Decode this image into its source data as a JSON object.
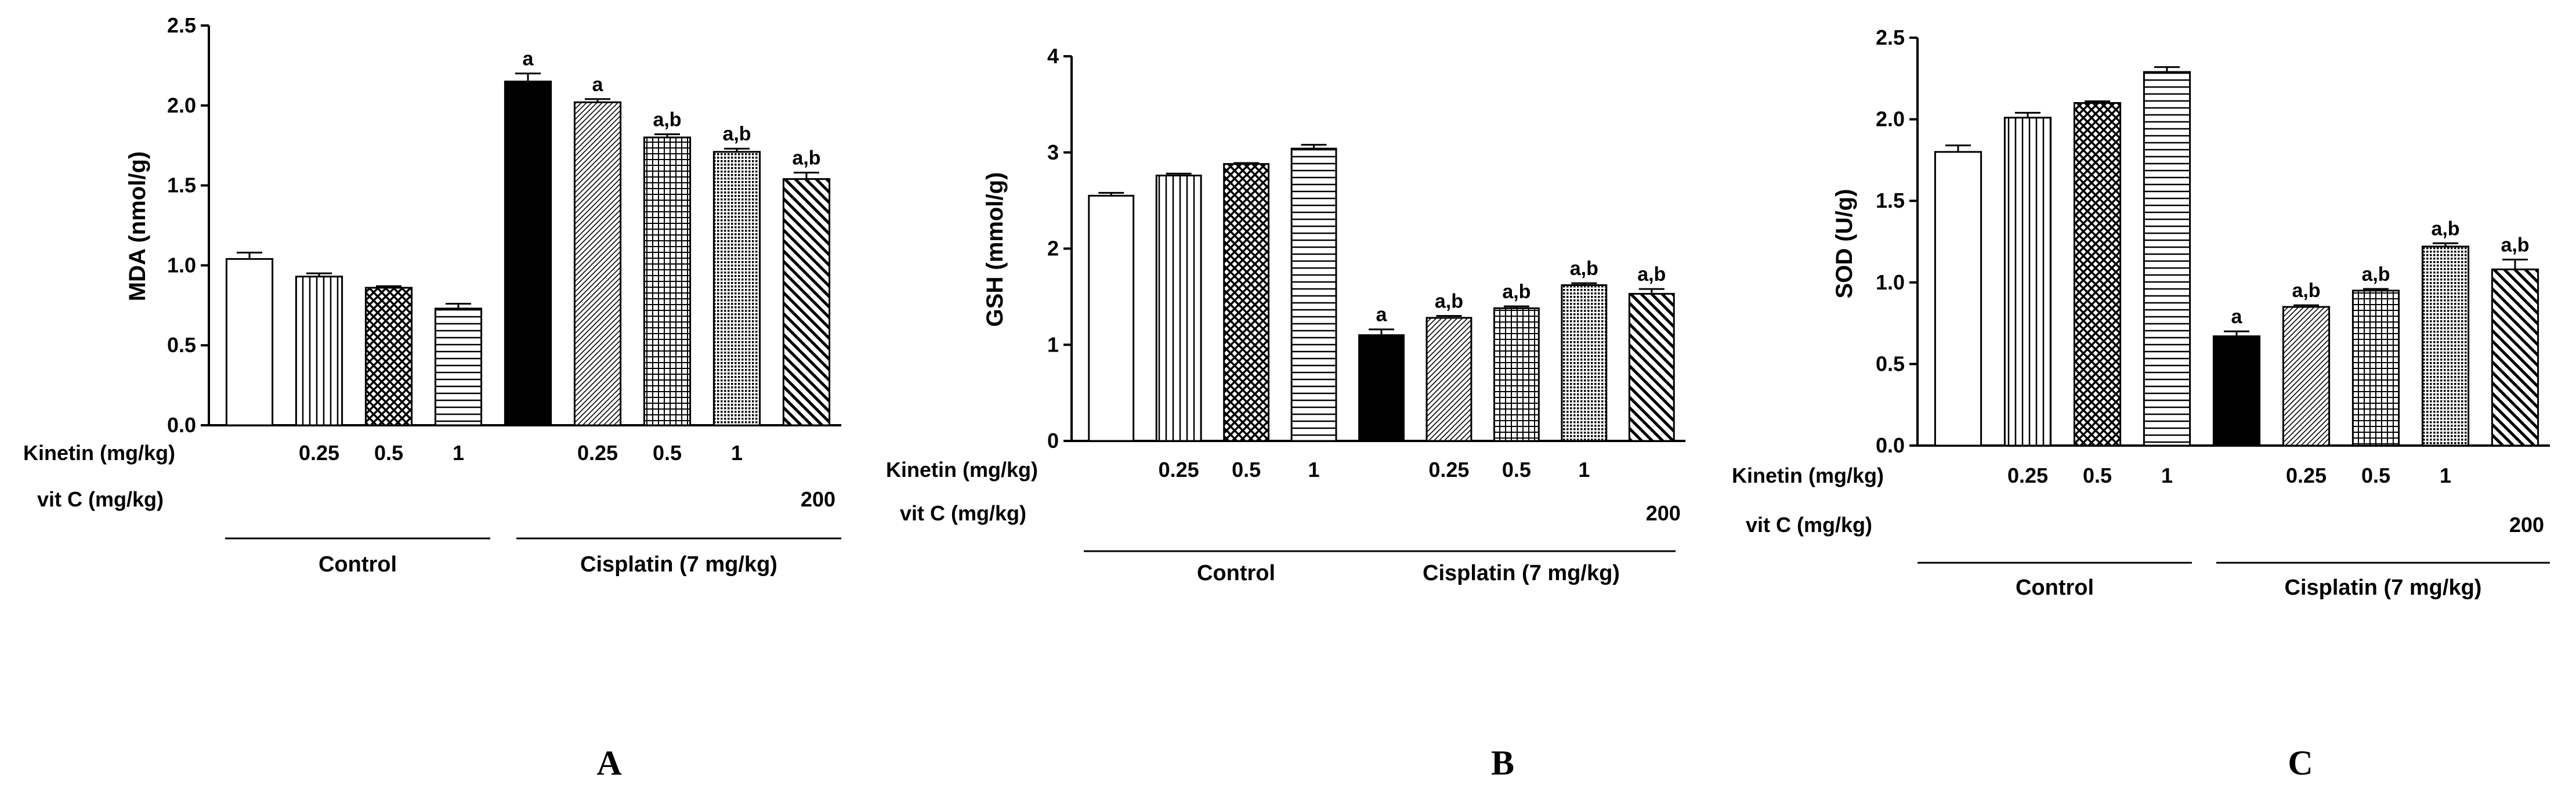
{
  "chart_data": [
    {
      "type": "bar",
      "panel": "A",
      "ylabel": "MDA (nmol/g)",
      "ylim": [
        0,
        2.5
      ],
      "yticks": [
        "0.0",
        "0.5",
        "1.0",
        "1.5",
        "2.0",
        "2.5"
      ],
      "kinetin_label": "Kinetin (mg/kg)",
      "vitc_label": "vit C (mg/kg)",
      "kinetin_values": [
        "",
        "0.25",
        "0.5",
        "1",
        "",
        "0.25",
        "0.5",
        "1",
        ""
      ],
      "vitc_values": [
        "",
        "",
        "",
        "",
        "",
        "",
        "",
        "",
        "200"
      ],
      "groups": [
        "Control",
        "Cisplatin (7 mg/kg)"
      ],
      "values": [
        1.04,
        0.93,
        0.86,
        0.73,
        2.15,
        2.02,
        1.8,
        1.71,
        1.54
      ],
      "errors": [
        0.04,
        0.02,
        0.01,
        0.03,
        0.05,
        0.02,
        0.02,
        0.02,
        0.04
      ],
      "sig_labels": [
        "",
        "",
        "",
        "",
        "a",
        "a",
        "a,b",
        "a,b",
        "a,b"
      ],
      "patterns": [
        "white",
        "vlines",
        "crosshatch",
        "hlines",
        "black",
        "diag-fine",
        "grid",
        "dense-dots",
        "diag-bold"
      ]
    },
    {
      "type": "bar",
      "panel": "B",
      "ylabel": "GSH (mmol/g)",
      "ylim": [
        0,
        4
      ],
      "yticks": [
        "0",
        "1",
        "2",
        "3",
        "4"
      ],
      "kinetin_label": "Kinetin (mg/kg)",
      "vitc_label": "vit C (mg/kg)",
      "kinetin_values": [
        "",
        "0.25",
        "0.5",
        "1",
        "",
        "0.25",
        "0.5",
        "1",
        ""
      ],
      "vitc_values": [
        "",
        "",
        "",
        "",
        "",
        "",
        "",
        "",
        "200"
      ],
      "groups": [
        "Control",
        "Cisplatin (7 mg/kg)"
      ],
      "values": [
        2.55,
        2.76,
        2.88,
        3.04,
        1.1,
        1.28,
        1.38,
        1.62,
        1.53
      ],
      "errors": [
        0.03,
        0.02,
        0.01,
        0.04,
        0.06,
        0.02,
        0.02,
        0.02,
        0.05
      ],
      "sig_labels": [
        "",
        "",
        "",
        "",
        "a",
        "a,b",
        "a,b",
        "a,b",
        "a,b"
      ],
      "patterns": [
        "white",
        "vlines",
        "crosshatch",
        "hlines",
        "black",
        "diag-fine",
        "grid",
        "dense-dots",
        "diag-bold"
      ]
    },
    {
      "type": "bar",
      "panel": "C",
      "ylabel": "SOD (U/g)",
      "ylim": [
        0,
        2.5
      ],
      "yticks": [
        "0.0",
        "0.5",
        "1.0",
        "1.5",
        "2.0",
        "2.5"
      ],
      "kinetin_label": "Kinetin (mg/kg)",
      "vitc_label": "vit C (mg/kg)",
      "kinetin_values": [
        "",
        "0.25",
        "0.5",
        "1",
        "",
        "0.25",
        "0.5",
        "1",
        ""
      ],
      "vitc_values": [
        "",
        "",
        "",
        "",
        "",
        "",
        "",
        "",
        "200"
      ],
      "groups": [
        "Control",
        "Cisplatin (7 mg/kg)"
      ],
      "values": [
        1.8,
        2.01,
        2.1,
        2.29,
        0.67,
        0.85,
        0.95,
        1.22,
        1.08
      ],
      "errors": [
        0.04,
        0.03,
        0.01,
        0.03,
        0.03,
        0.01,
        0.01,
        0.02,
        0.06
      ],
      "sig_labels": [
        "",
        "",
        "",
        "",
        "a",
        "a,b",
        "a,b",
        "a,b",
        "a,b"
      ],
      "patterns": [
        "white",
        "vlines",
        "crosshatch",
        "hlines",
        "black",
        "diag-fine",
        "grid",
        "dense-dots",
        "diag-bold"
      ]
    }
  ],
  "colors": {
    "ink": "#000000",
    "background": "#ffffff"
  }
}
